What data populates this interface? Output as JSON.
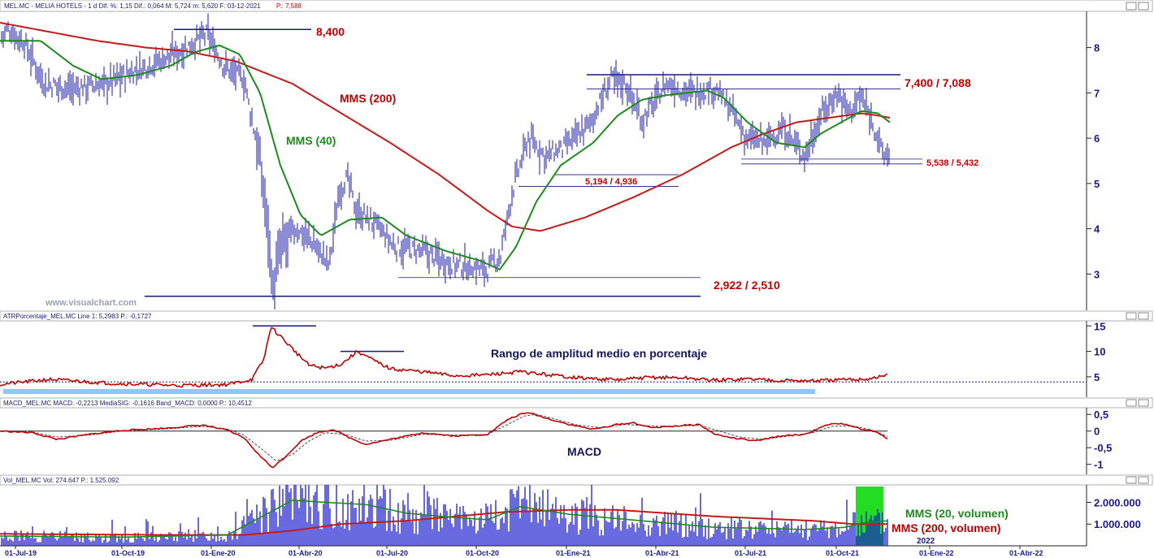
{
  "panels": {
    "price": {
      "header": "MEL.MC - MELIA HOTELS - 1 d  Dif. %: 1,15  Dif.: 0,064  M: 5,724  m: 5,620  F: 03-12-2021",
      "header_last": "P.: 7,588",
      "yticks": [
        "8",
        "7",
        "6",
        "5",
        "4",
        "3"
      ]
    },
    "atr": {
      "header": "ATRPorcentaje_MEL.MC  Line 1: 5,2983  P.: -0,1727",
      "yticks": [
        "15",
        "10",
        "5"
      ]
    },
    "macd": {
      "header": "MACD_MEL.MC  MACD: -0,2213  MediaSIG: -0,1616  Band_MACD: 0,0000  P.: 10,4512",
      "yticks": [
        "0,5",
        "0",
        "-0,5",
        "-1"
      ]
    },
    "vol": {
      "header": "Vol_MEL.MC  Vol: 274.647  P.: 1.525.092",
      "yticks": [
        "2.000.000",
        "1.000.000"
      ]
    }
  },
  "annotations": {
    "high": "8,400",
    "mms200": "MMS (200)",
    "mms40": "MMS (40)",
    "resistance": "7,400 / 7,088",
    "support_recent": "5,538 / 5,432",
    "mid_level": "5,194 / 4,936",
    "low": "2,922 / 2,510",
    "watermark": "www.visualchart.com",
    "atr_title": "Rango de amplitud medio en porcentaje",
    "macd_title": "MACD",
    "vol_mms20": "MMS (20, volumen)",
    "vol_mms200": "MMS (200, volumen)",
    "year_label": "2022"
  },
  "xaxis": {
    "labels": [
      "01-Jul-19",
      "01-Oct-19",
      "01-Ene-20",
      "01-Abr-20",
      "01-Jul-20",
      "01-Oct-20",
      "01-Ene-21",
      "01-Abr-21",
      "01-Jul-21",
      "01-Oct-21",
      "01-Ene-22",
      "01-Abr-22"
    ]
  },
  "colors": {
    "price_bars": "#1a1aa8",
    "mms200": "#c41a1a",
    "mms40": "#1f8a1f",
    "level_lines": "#1a1a7a",
    "atr_line": "#c00000",
    "macd_line": "#c00000",
    "signal_line": "#444466",
    "volume_bars": "#1a1ad0",
    "highlight": "#22dd22",
    "atr_band": "#8ec7f2"
  },
  "chart_data": {
    "type": "line",
    "title": "MEL.MC - MELIA HOTELS - 1 d",
    "x_range": [
      "01-Jul-19",
      "01-Abr-22"
    ],
    "price": {
      "ylim": [
        2.2,
        8.8
      ],
      "close_anchors": [
        [
          0,
          8.2
        ],
        [
          10,
          8.4
        ],
        [
          30,
          8.1
        ],
        [
          55,
          7.2
        ],
        [
          90,
          7.1
        ],
        [
          130,
          7.2
        ],
        [
          180,
          7.6
        ],
        [
          220,
          7.9
        ],
        [
          255,
          8.3
        ],
        [
          275,
          7.6
        ],
        [
          300,
          7.3
        ],
        [
          318,
          5.7
        ],
        [
          330,
          4.0
        ],
        [
          336,
          2.6
        ],
        [
          345,
          3.6
        ],
        [
          365,
          4.0
        ],
        [
          385,
          3.7
        ],
        [
          405,
          3.2
        ],
        [
          418,
          4.9
        ],
        [
          428,
          5.1
        ],
        [
          438,
          4.4
        ],
        [
          462,
          4.1
        ],
        [
          485,
          3.6
        ],
        [
          520,
          3.5
        ],
        [
          560,
          3.2
        ],
        [
          600,
          3.1
        ],
        [
          616,
          3.4
        ],
        [
          630,
          4.8
        ],
        [
          650,
          6.0
        ],
        [
          672,
          5.6
        ],
        [
          695,
          5.8
        ],
        [
          725,
          6.3
        ],
        [
          752,
          7.3
        ],
        [
          770,
          7.2
        ],
        [
          790,
          6.4
        ],
        [
          820,
          7.2
        ],
        [
          850,
          7.0
        ],
        [
          880,
          7.1
        ],
        [
          900,
          6.6
        ],
        [
          918,
          6.0
        ],
        [
          940,
          5.9
        ],
        [
          965,
          6.2
        ],
        [
          990,
          5.6
        ],
        [
          1010,
          6.5
        ],
        [
          1030,
          7.0
        ],
        [
          1045,
          6.6
        ],
        [
          1060,
          6.9
        ],
        [
          1075,
          6.3
        ],
        [
          1087,
          5.6
        ],
        [
          1095,
          5.7
        ]
      ],
      "mms200_anchors": [
        [
          0,
          8.55
        ],
        [
          60,
          8.35
        ],
        [
          120,
          8.15
        ],
        [
          180,
          8.0
        ],
        [
          230,
          7.92
        ],
        [
          290,
          7.7
        ],
        [
          360,
          7.2
        ],
        [
          420,
          6.55
        ],
        [
          480,
          5.9
        ],
        [
          540,
          5.2
        ],
        [
          600,
          4.4
        ],
        [
          630,
          4.05
        ],
        [
          665,
          3.95
        ],
        [
          720,
          4.25
        ],
        [
          780,
          4.7
        ],
        [
          840,
          5.2
        ],
        [
          900,
          5.8
        ],
        [
          940,
          6.1
        ],
        [
          980,
          6.35
        ],
        [
          1020,
          6.45
        ],
        [
          1060,
          6.55
        ],
        [
          1080,
          6.5
        ],
        [
          1095,
          6.45
        ]
      ],
      "mms40_anchors": [
        [
          0,
          8.15
        ],
        [
          50,
          8.15
        ],
        [
          90,
          7.6
        ],
        [
          125,
          7.3
        ],
        [
          170,
          7.4
        ],
        [
          210,
          7.6
        ],
        [
          240,
          7.9
        ],
        [
          270,
          8.05
        ],
        [
          295,
          7.85
        ],
        [
          320,
          7.0
        ],
        [
          345,
          5.4
        ],
        [
          370,
          4.3
        ],
        [
          395,
          3.85
        ],
        [
          430,
          4.2
        ],
        [
          470,
          4.25
        ],
        [
          500,
          3.85
        ],
        [
          550,
          3.5
        ],
        [
          590,
          3.3
        ],
        [
          615,
          3.1
        ],
        [
          635,
          3.6
        ],
        [
          660,
          4.6
        ],
        [
          690,
          5.4
        ],
        [
          730,
          5.9
        ],
        [
          760,
          6.5
        ],
        [
          790,
          6.85
        ],
        [
          820,
          6.95
        ],
        [
          870,
          7.05
        ],
        [
          890,
          6.9
        ],
        [
          920,
          6.35
        ],
        [
          955,
          5.9
        ],
        [
          990,
          5.8
        ],
        [
          1010,
          6.1
        ],
        [
          1040,
          6.4
        ],
        [
          1060,
          6.6
        ],
        [
          1080,
          6.55
        ],
        [
          1095,
          6.35
        ]
      ],
      "levels": [
        {
          "label": "8,400",
          "value": 8.4
        },
        {
          "label": "7,400 / 7,088",
          "values": [
            7.4,
            7.088
          ]
        },
        {
          "label": "5,538 / 5,432",
          "values": [
            5.538,
            5.432
          ]
        },
        {
          "label": "5,194 / 4,936",
          "values": [
            5.194,
            4.936
          ]
        },
        {
          "label": "2,922 / 2,510",
          "values": [
            2.922,
            2.51
          ]
        }
      ]
    },
    "atr": {
      "ylim": [
        1,
        16
      ],
      "reference_level": 4,
      "anchors": [
        [
          0,
          3.5
        ],
        [
          60,
          4.5
        ],
        [
          140,
          3.7
        ],
        [
          220,
          3.3
        ],
        [
          280,
          3.5
        ],
        [
          310,
          4.5
        ],
        [
          325,
          8.5
        ],
        [
          333,
          14.8
        ],
        [
          345,
          13.0
        ],
        [
          360,
          10.5
        ],
        [
          380,
          7.3
        ],
        [
          400,
          6.7
        ],
        [
          420,
          7.5
        ],
        [
          440,
          10.0
        ],
        [
          460,
          8.2
        ],
        [
          480,
          6.6
        ],
        [
          520,
          6.0
        ],
        [
          560,
          5.2
        ],
        [
          600,
          5.4
        ],
        [
          640,
          6.0
        ],
        [
          680,
          5.3
        ],
        [
          720,
          4.7
        ],
        [
          760,
          4.4
        ],
        [
          800,
          4.9
        ],
        [
          840,
          4.8
        ],
        [
          880,
          4.3
        ],
        [
          920,
          4.6
        ],
        [
          960,
          4.3
        ],
        [
          1000,
          4.2
        ],
        [
          1040,
          4.4
        ],
        [
          1070,
          4.6
        ],
        [
          1085,
          5.1
        ],
        [
          1092,
          5.3
        ]
      ],
      "marks": [
        {
          "value": 15
        },
        {
          "value": 10
        }
      ]
    },
    "macd": {
      "ylim": [
        -1.3,
        0.7
      ],
      "macd_anchors": [
        [
          0,
          0
        ],
        [
          40,
          -0.05
        ],
        [
          70,
          -0.25
        ],
        [
          110,
          -0.1
        ],
        [
          150,
          0.02
        ],
        [
          200,
          0.08
        ],
        [
          250,
          0.18
        ],
        [
          280,
          0.02
        ],
        [
          300,
          -0.2
        ],
        [
          320,
          -0.75
        ],
        [
          335,
          -1.1
        ],
        [
          350,
          -0.8
        ],
        [
          370,
          -0.3
        ],
        [
          390,
          -0.05
        ],
        [
          410,
          0.05
        ],
        [
          430,
          -0.2
        ],
        [
          450,
          -0.4
        ],
        [
          480,
          -0.25
        ],
        [
          520,
          -0.05
        ],
        [
          560,
          -0.15
        ],
        [
          600,
          -0.1
        ],
        [
          625,
          0.35
        ],
        [
          640,
          0.5
        ],
        [
          652,
          0.55
        ],
        [
          670,
          0.4
        ],
        [
          700,
          0.2
        ],
        [
          730,
          0.05
        ],
        [
          760,
          0.2
        ],
        [
          780,
          0.25
        ],
        [
          800,
          0.1
        ],
        [
          830,
          0.15
        ],
        [
          860,
          0.2
        ],
        [
          880,
          -0.1
        ],
        [
          900,
          -0.2
        ],
        [
          930,
          -0.3
        ],
        [
          960,
          -0.15
        ],
        [
          990,
          -0.1
        ],
        [
          1020,
          0.2
        ],
        [
          1040,
          0.22
        ],
        [
          1060,
          0.05
        ],
        [
          1075,
          0.0
        ],
        [
          1092,
          -0.22
        ]
      ],
      "signal_anchors": [
        [
          0,
          0
        ],
        [
          40,
          -0.03
        ],
        [
          70,
          -0.18
        ],
        [
          110,
          -0.12
        ],
        [
          150,
          0
        ],
        [
          200,
          0.06
        ],
        [
          250,
          0.14
        ],
        [
          280,
          0.06
        ],
        [
          300,
          -0.12
        ],
        [
          320,
          -0.5
        ],
        [
          340,
          -0.9
        ],
        [
          360,
          -0.7
        ],
        [
          380,
          -0.3
        ],
        [
          400,
          -0.05
        ],
        [
          425,
          -0.1
        ],
        [
          450,
          -0.3
        ],
        [
          480,
          -0.28
        ],
        [
          520,
          -0.1
        ],
        [
          560,
          -0.12
        ],
        [
          600,
          -0.1
        ],
        [
          625,
          0.2
        ],
        [
          645,
          0.45
        ],
        [
          660,
          0.5
        ],
        [
          680,
          0.38
        ],
        [
          710,
          0.18
        ],
        [
          740,
          0.1
        ],
        [
          770,
          0.2
        ],
        [
          800,
          0.15
        ],
        [
          830,
          0.14
        ],
        [
          860,
          0.18
        ],
        [
          885,
          0.0
        ],
        [
          910,
          -0.18
        ],
        [
          940,
          -0.25
        ],
        [
          970,
          -0.15
        ],
        [
          1000,
          -0.05
        ],
        [
          1025,
          0.15
        ],
        [
          1050,
          0.15
        ],
        [
          1070,
          0.05
        ],
        [
          1092,
          -0.16
        ]
      ]
    },
    "volume": {
      "ylim": [
        0,
        2800000
      ],
      "mms20_anchors": [
        [
          0,
          450000
        ],
        [
          150,
          400000
        ],
        [
          280,
          500000
        ],
        [
          320,
          1300000
        ],
        [
          360,
          2100000
        ],
        [
          400,
          2000000
        ],
        [
          450,
          1900000
        ],
        [
          500,
          1500000
        ],
        [
          560,
          1300000
        ],
        [
          600,
          1200000
        ],
        [
          640,
          1800000
        ],
        [
          700,
          1450000
        ],
        [
          760,
          1250000
        ],
        [
          820,
          1050000
        ],
        [
          880,
          850000
        ],
        [
          940,
          800000
        ],
        [
          990,
          750000
        ],
        [
          1040,
          850000
        ],
        [
          1060,
          1050000
        ],
        [
          1092,
          1150000
        ]
      ],
      "mms200_anchors": [
        [
          0,
          550000
        ],
        [
          200,
          500000
        ],
        [
          300,
          500000
        ],
        [
          360,
          700000
        ],
        [
          420,
          1000000
        ],
        [
          500,
          1150000
        ],
        [
          560,
          1350000
        ],
        [
          620,
          1550000
        ],
        [
          700,
          1650000
        ],
        [
          760,
          1650000
        ],
        [
          820,
          1500000
        ],
        [
          880,
          1350000
        ],
        [
          940,
          1250000
        ],
        [
          1000,
          1150000
        ],
        [
          1050,
          1000000
        ],
        [
          1092,
          1000000
        ]
      ]
    }
  }
}
